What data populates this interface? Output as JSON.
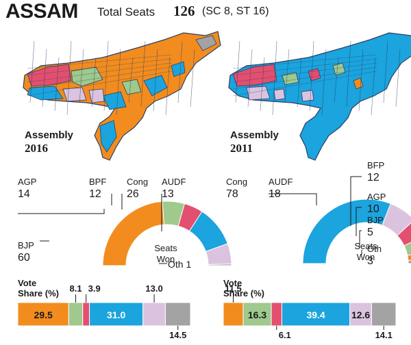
{
  "title": "ASSAM",
  "seats_label": "Total Seats",
  "seats_total": "126",
  "seats_reserved": "(SC 8, ST 16)",
  "colors": {
    "BJP": "#f28c1e",
    "AGP": "#9fc98d",
    "BPF": "#e34f6f",
    "Cong": "#1ba4de",
    "AUDF": "#dbc3df",
    "Oth": "#a3a3a3",
    "BFP": "#e34f6f",
    "bg": "#ffffff",
    "map_border": "#2a3f63"
  },
  "chart_data": [
    {
      "type": "pie",
      "panel": "2016",
      "map_label": [
        "Assembly",
        "2016"
      ],
      "center_label": [
        "Seats",
        "Won"
      ],
      "seats": [
        {
          "party": "BJP",
          "value": 60
        },
        {
          "party": "AGP",
          "value": 14
        },
        {
          "party": "BPF",
          "value": 12
        },
        {
          "party": "Cong",
          "value": 26
        },
        {
          "party": "AUDF",
          "value": 13
        },
        {
          "party": "Oth",
          "value": 1
        }
      ],
      "vote_share_label": [
        "Vote",
        "Share (%)"
      ],
      "vote_share": [
        {
          "party": "BJP",
          "value": 29.5
        },
        {
          "party": "AGP",
          "value": 8.1
        },
        {
          "party": "BPF",
          "value": 3.9
        },
        {
          "party": "Cong",
          "value": 31.0
        },
        {
          "party": "AUDF",
          "value": 13.0
        },
        {
          "party": "Oth",
          "value": 14.5
        }
      ]
    },
    {
      "type": "pie",
      "panel": "2011",
      "map_label": [
        "Assembly",
        "2011"
      ],
      "center_label": [
        "Seats",
        "Won"
      ],
      "seats": [
        {
          "party": "Cong",
          "value": 78
        },
        {
          "party": "AUDF",
          "value": 18
        },
        {
          "party": "BFP",
          "value": 12
        },
        {
          "party": "AGP",
          "value": 10
        },
        {
          "party": "BJP",
          "value": 5
        },
        {
          "party": "Oth",
          "value": 3
        }
      ],
      "vote_share_label": [
        "Vote",
        "Share (%)"
      ],
      "vote_share": [
        {
          "party": "BJP",
          "value": 11.5
        },
        {
          "party": "AGP",
          "value": 16.3
        },
        {
          "party": "BPF",
          "value": 6.1
        },
        {
          "party": "Cong",
          "value": 39.4
        },
        {
          "party": "AUDF",
          "value": 12.6
        },
        {
          "party": "Oth",
          "value": 14.1
        }
      ]
    }
  ]
}
